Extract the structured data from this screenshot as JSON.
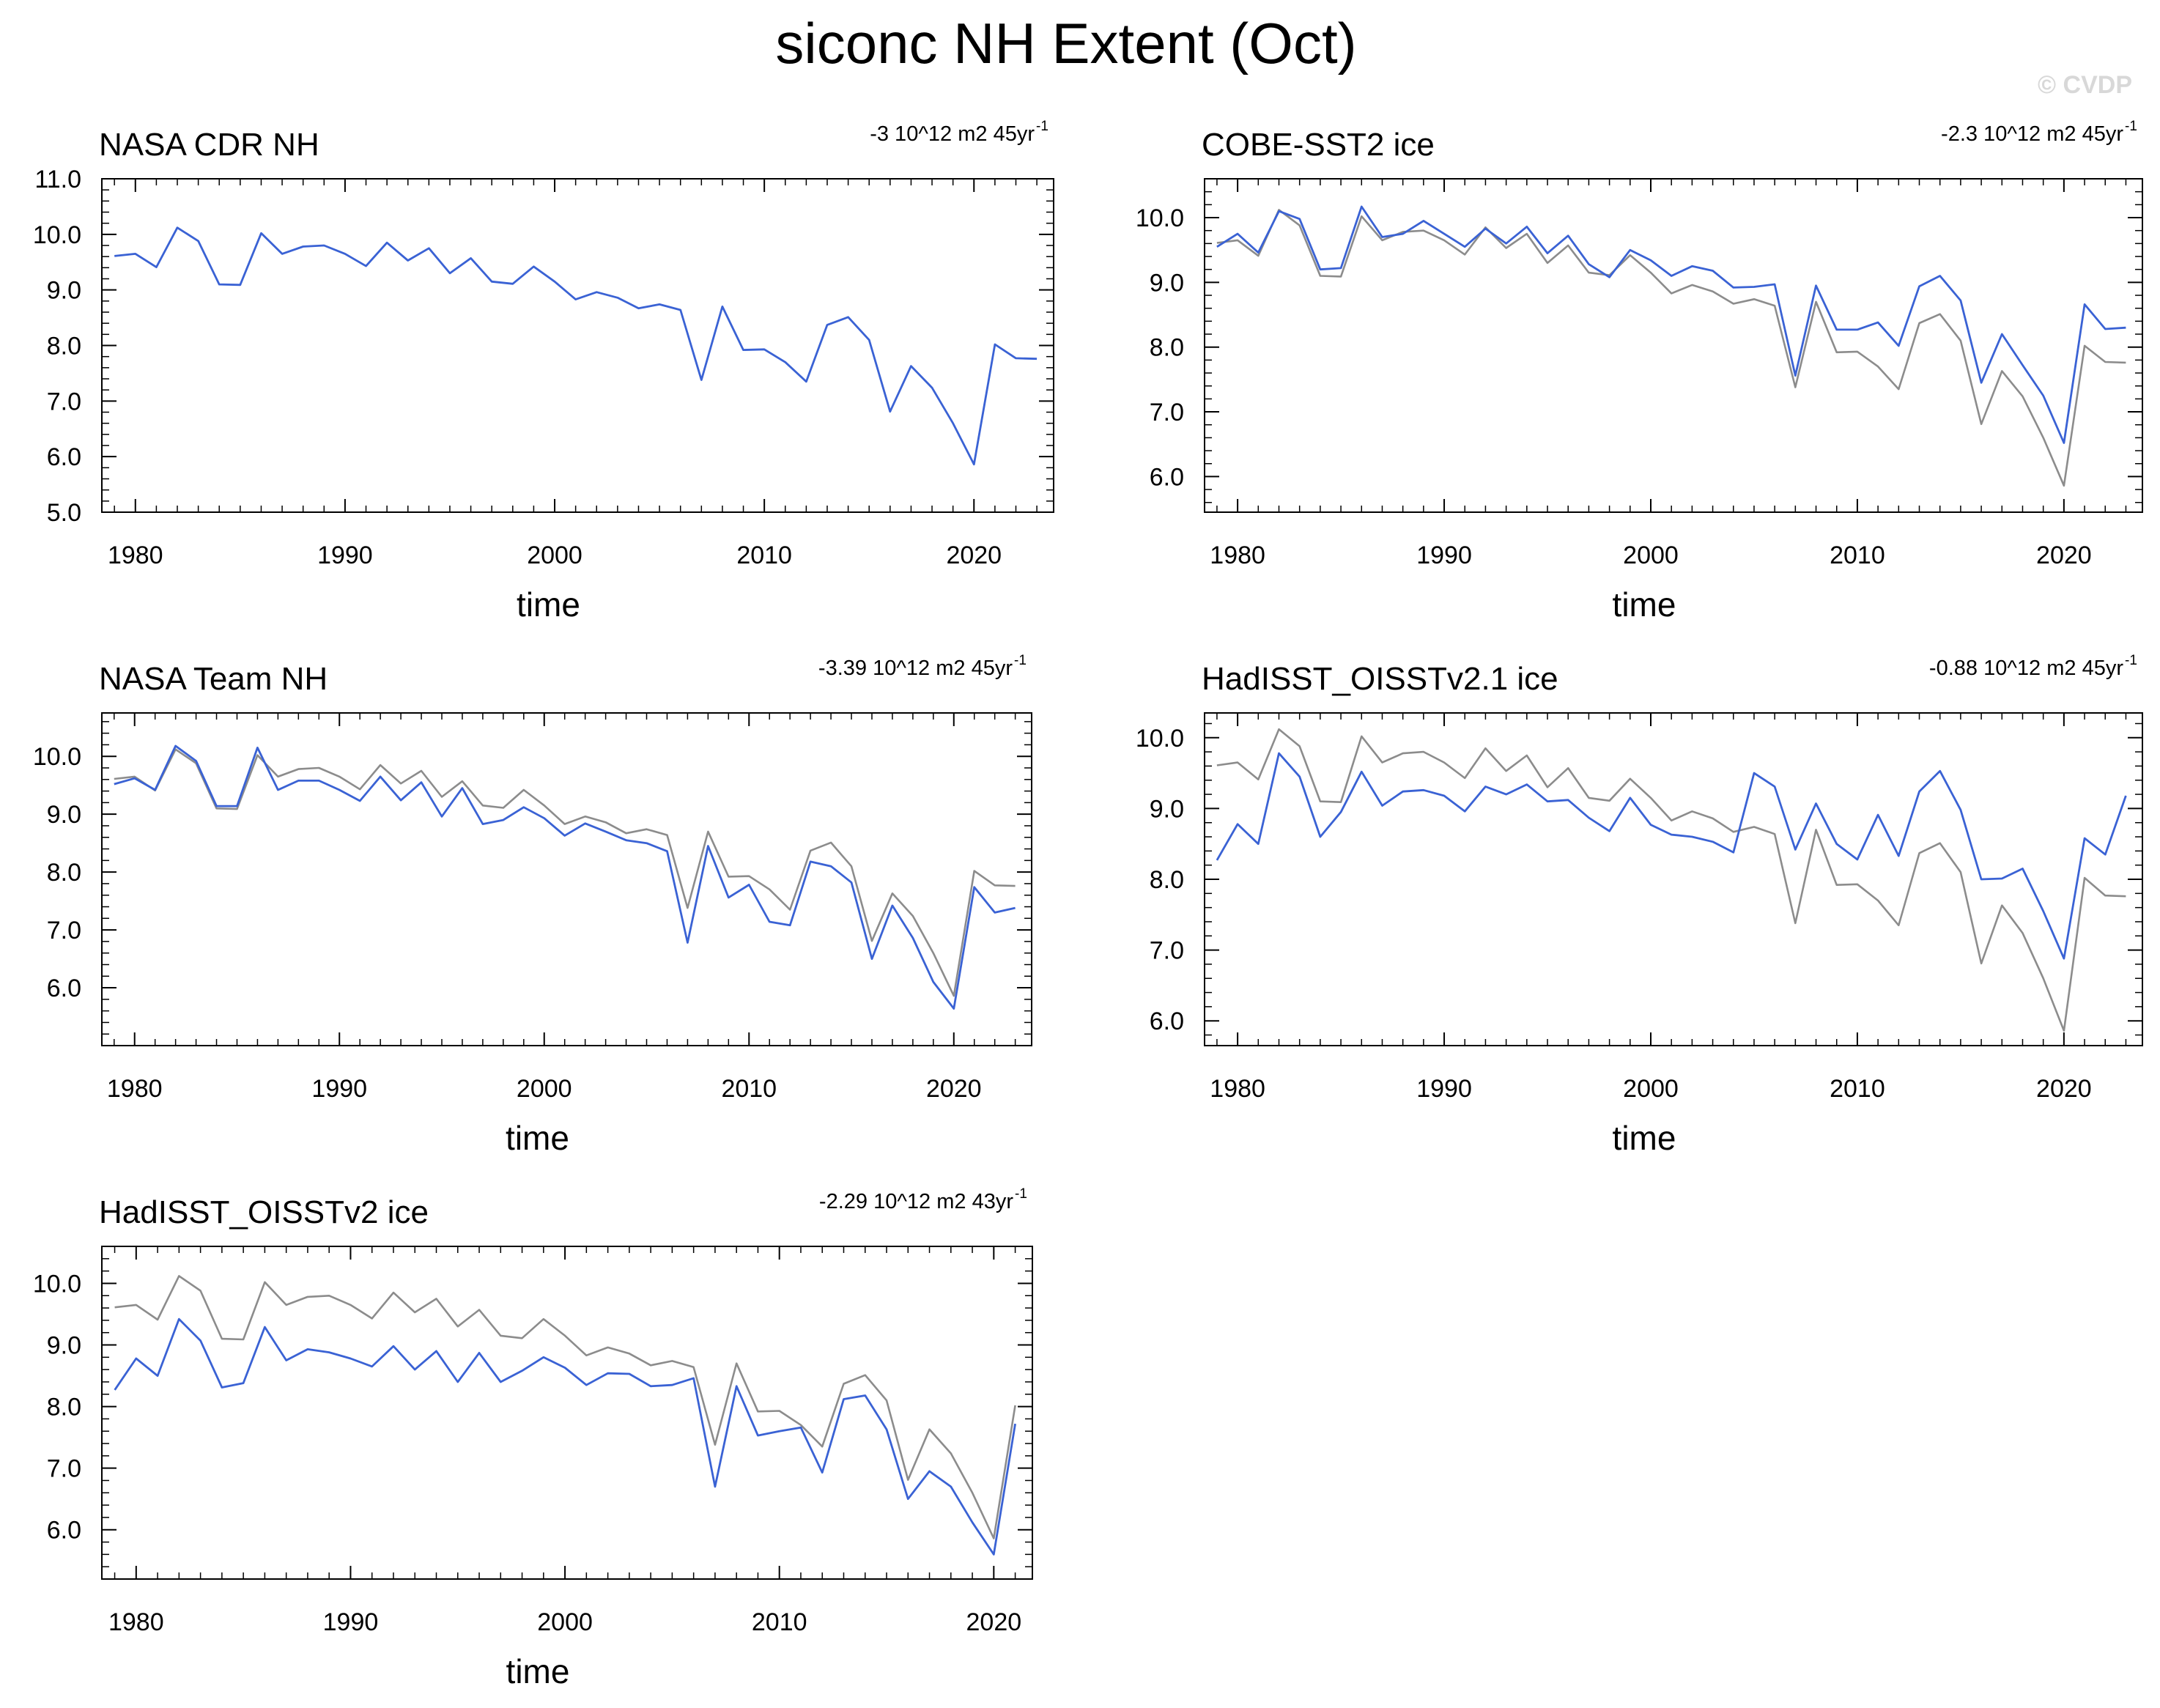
{
  "figure": {
    "title": "siconc NH Extent (Oct)",
    "watermark": "© CVDP"
  },
  "colors": {
    "series_main": "#3a62d4",
    "series_reference": "#8c8c8c",
    "axis": "#000000",
    "watermark": "#d8d8d8"
  },
  "chart_data": [
    {
      "type": "line",
      "title": "NASA CDR NH",
      "trend_text": "-3 10^12 m2 45yr",
      "trend_sup": "-1",
      "xlabel": "time",
      "ylabel": "",
      "xlim": [
        1978.4,
        2023.8
      ],
      "ylim": [
        5.0,
        11.0
      ],
      "xticks": [
        1980,
        1990,
        2000,
        2010,
        2020
      ],
      "xtick_labels": [
        "1980",
        "1990",
        "2000",
        "2010",
        "2020"
      ],
      "yticks": [
        5.0,
        6.0,
        7.0,
        8.0,
        9.0,
        10.0,
        11.0
      ],
      "ytick_labels": [
        "5.0",
        "6.0",
        "7.0",
        "8.0",
        "9.0",
        "10.0",
        "11.0"
      ],
      "x_start": 1979,
      "series": [
        {
          "name": "NASA CDR NH",
          "role": "main",
          "values": [
            9.61,
            9.65,
            9.41,
            10.12,
            9.88,
            9.1,
            9.09,
            10.02,
            9.65,
            9.78,
            9.8,
            9.65,
            9.43,
            9.85,
            9.53,
            9.75,
            9.3,
            9.57,
            9.15,
            9.11,
            9.42,
            9.15,
            8.83,
            8.96,
            8.86,
            8.67,
            8.74,
            8.64,
            7.38,
            8.7,
            7.92,
            7.93,
            7.7,
            7.35,
            8.37,
            8.51,
            8.1,
            6.81,
            7.63,
            7.24,
            6.6,
            5.86,
            8.02,
            7.77,
            7.76
          ]
        }
      ]
    },
    {
      "type": "line",
      "title": "COBE-SST2 ice",
      "trend_text": "-2.3 10^12 m2 45yr",
      "trend_sup": "-1",
      "xlabel": "time",
      "ylabel": "",
      "xlim": [
        1978.4,
        2023.8
      ],
      "ylim": [
        5.45,
        10.6
      ],
      "xticks": [
        1980,
        1990,
        2000,
        2010,
        2020
      ],
      "xtick_labels": [
        "1980",
        "1990",
        "2000",
        "2010",
        "2020"
      ],
      "yticks": [
        6.0,
        7.0,
        8.0,
        9.0,
        10.0
      ],
      "ytick_labels": [
        "6.0",
        "7.0",
        "8.0",
        "9.0",
        "10.0"
      ],
      "x_start": 1979,
      "series": [
        {
          "name": "COBE-SST2 ice",
          "role": "main",
          "values": [
            9.55,
            9.75,
            9.46,
            10.1,
            9.98,
            9.2,
            9.22,
            10.17,
            9.7,
            9.75,
            9.95,
            9.75,
            9.55,
            9.83,
            9.6,
            9.86,
            9.45,
            9.72,
            9.28,
            9.08,
            9.5,
            9.34,
            9.1,
            9.25,
            9.18,
            8.92,
            8.93,
            8.97,
            7.56,
            8.95,
            8.27,
            8.27,
            8.38,
            8.02,
            8.94,
            9.1,
            8.72,
            7.45,
            8.2,
            7.72,
            7.25,
            6.52,
            8.66,
            8.28,
            8.3
          ]
        },
        {
          "name": "NASA CDR NH",
          "role": "reference",
          "values": [
            9.61,
            9.65,
            9.41,
            10.12,
            9.88,
            9.1,
            9.09,
            10.02,
            9.65,
            9.78,
            9.8,
            9.65,
            9.43,
            9.85,
            9.53,
            9.75,
            9.3,
            9.57,
            9.15,
            9.11,
            9.42,
            9.15,
            8.83,
            8.96,
            8.86,
            8.67,
            8.74,
            8.64,
            7.38,
            8.7,
            7.92,
            7.93,
            7.7,
            7.35,
            8.37,
            8.51,
            8.1,
            6.81,
            7.63,
            7.24,
            6.6,
            5.86,
            8.02,
            7.77,
            7.76
          ]
        }
      ]
    },
    {
      "type": "line",
      "title": "NASA Team NH",
      "trend_text": "-3.39 10^12 m2 45yr",
      "trend_sup": "-1",
      "xlabel": "time",
      "ylabel": "",
      "xlim": [
        1978.4,
        2023.8
      ],
      "ylim": [
        5.0,
        10.75
      ],
      "xticks": [
        1980,
        1990,
        2000,
        2010,
        2020
      ],
      "xtick_labels": [
        "1980",
        "1990",
        "2000",
        "2010",
        "2020"
      ],
      "yticks": [
        6.0,
        7.0,
        8.0,
        9.0,
        10.0
      ],
      "ytick_labels": [
        "6.0",
        "7.0",
        "8.0",
        "9.0",
        "10.0"
      ],
      "x_start": 1979,
      "series": [
        {
          "name": "NASA Team NH",
          "role": "main",
          "values": [
            9.52,
            9.62,
            9.42,
            10.18,
            9.92,
            9.14,
            9.14,
            10.15,
            9.42,
            9.58,
            9.58,
            9.42,
            9.23,
            9.65,
            9.24,
            9.55,
            8.96,
            9.45,
            8.83,
            8.9,
            9.12,
            8.93,
            8.63,
            8.84,
            8.7,
            8.55,
            8.5,
            8.36,
            6.78,
            8.45,
            7.56,
            7.78,
            7.14,
            7.08,
            8.18,
            8.1,
            7.82,
            6.5,
            7.42,
            6.86,
            6.1,
            5.64,
            7.74,
            7.3,
            7.38
          ]
        },
        {
          "name": "NASA CDR NH",
          "role": "reference",
          "values": [
            9.61,
            9.65,
            9.41,
            10.12,
            9.88,
            9.1,
            9.09,
            10.02,
            9.65,
            9.78,
            9.8,
            9.65,
            9.43,
            9.85,
            9.53,
            9.75,
            9.3,
            9.57,
            9.15,
            9.11,
            9.42,
            9.15,
            8.83,
            8.96,
            8.86,
            8.67,
            8.74,
            8.64,
            7.38,
            8.7,
            7.92,
            7.93,
            7.7,
            7.35,
            8.37,
            8.51,
            8.1,
            6.81,
            7.63,
            7.24,
            6.6,
            5.86,
            8.02,
            7.77,
            7.76
          ]
        }
      ]
    },
    {
      "type": "line",
      "title": "HadISST_OISSTv2.1 ice",
      "trend_text": "-0.88 10^12 m2 45yr",
      "trend_sup": "-1",
      "xlabel": "time",
      "ylabel": "",
      "xlim": [
        1978.4,
        2023.8
      ],
      "ylim": [
        5.65,
        10.35
      ],
      "xticks": [
        1980,
        1990,
        2000,
        2010,
        2020
      ],
      "xtick_labels": [
        "1980",
        "1990",
        "2000",
        "2010",
        "2020"
      ],
      "yticks": [
        6.0,
        7.0,
        8.0,
        9.0,
        10.0
      ],
      "ytick_labels": [
        "6.0",
        "7.0",
        "8.0",
        "9.0",
        "10.0"
      ],
      "x_start": 1979,
      "series": [
        {
          "name": "HadISST_OISSTv2.1 ice",
          "role": "main",
          "values": [
            8.27,
            8.78,
            8.5,
            9.78,
            9.45,
            8.6,
            8.95,
            9.52,
            9.04,
            9.24,
            9.26,
            9.18,
            8.96,
            9.31,
            9.2,
            9.34,
            9.1,
            9.12,
            8.87,
            8.68,
            9.15,
            8.77,
            8.63,
            8.6,
            8.53,
            8.38,
            9.5,
            9.31,
            8.42,
            9.07,
            8.5,
            8.28,
            8.91,
            8.33,
            9.24,
            9.53,
            8.98,
            8.0,
            8.01,
            8.15,
            7.55,
            6.88,
            8.58,
            8.35,
            9.18
          ]
        },
        {
          "name": "NASA CDR NH",
          "role": "reference",
          "values": [
            9.61,
            9.65,
            9.41,
            10.12,
            9.88,
            9.1,
            9.09,
            10.02,
            9.65,
            9.78,
            9.8,
            9.65,
            9.43,
            9.85,
            9.53,
            9.75,
            9.3,
            9.57,
            9.15,
            9.11,
            9.42,
            9.15,
            8.83,
            8.96,
            8.86,
            8.67,
            8.74,
            8.64,
            7.38,
            8.7,
            7.92,
            7.93,
            7.7,
            7.35,
            8.37,
            8.51,
            8.1,
            6.81,
            7.63,
            7.24,
            6.6,
            5.86,
            8.02,
            7.77,
            7.76
          ]
        }
      ]
    },
    {
      "type": "line",
      "title": "HadISST_OISSTv2 ice",
      "trend_text": "-2.29 10^12 m2 43yr",
      "trend_sup": "-1",
      "xlabel": "time",
      "ylabel": "",
      "xlim": [
        1978.4,
        2021.8
      ],
      "ylim": [
        5.2,
        10.6
      ],
      "xticks": [
        1980,
        1990,
        2000,
        2010,
        2020
      ],
      "xtick_labels": [
        "1980",
        "1990",
        "2000",
        "2010",
        "2020"
      ],
      "yticks": [
        6.0,
        7.0,
        8.0,
        9.0,
        10.0
      ],
      "ytick_labels": [
        "6.0",
        "7.0",
        "8.0",
        "9.0",
        "10.0"
      ],
      "x_start": 1979,
      "series": [
        {
          "name": "HadISST_OISSTv2 ice",
          "role": "main",
          "values": [
            8.27,
            8.78,
            8.5,
            9.42,
            9.07,
            8.31,
            8.38,
            9.29,
            8.75,
            8.93,
            8.88,
            8.78,
            8.65,
            8.98,
            8.6,
            8.9,
            8.4,
            8.87,
            8.4,
            8.58,
            8.8,
            8.63,
            8.35,
            8.54,
            8.53,
            8.33,
            8.35,
            8.46,
            6.7,
            8.33,
            7.53,
            7.6,
            7.66,
            6.93,
            8.12,
            8.18,
            7.63,
            6.5,
            6.95,
            6.7,
            6.12,
            5.6,
            7.72
          ]
        },
        {
          "name": "NASA CDR NH",
          "role": "reference",
          "values": [
            9.61,
            9.65,
            9.41,
            10.12,
            9.88,
            9.1,
            9.09,
            10.02,
            9.65,
            9.78,
            9.8,
            9.65,
            9.43,
            9.85,
            9.53,
            9.75,
            9.3,
            9.57,
            9.15,
            9.11,
            9.42,
            9.15,
            8.83,
            8.96,
            8.86,
            8.67,
            8.74,
            8.64,
            7.38,
            8.7,
            7.92,
            7.93,
            7.7,
            7.35,
            8.37,
            8.51,
            8.1,
            6.81,
            7.63,
            7.24,
            6.6,
            5.86,
            8.02
          ]
        }
      ]
    }
  ]
}
